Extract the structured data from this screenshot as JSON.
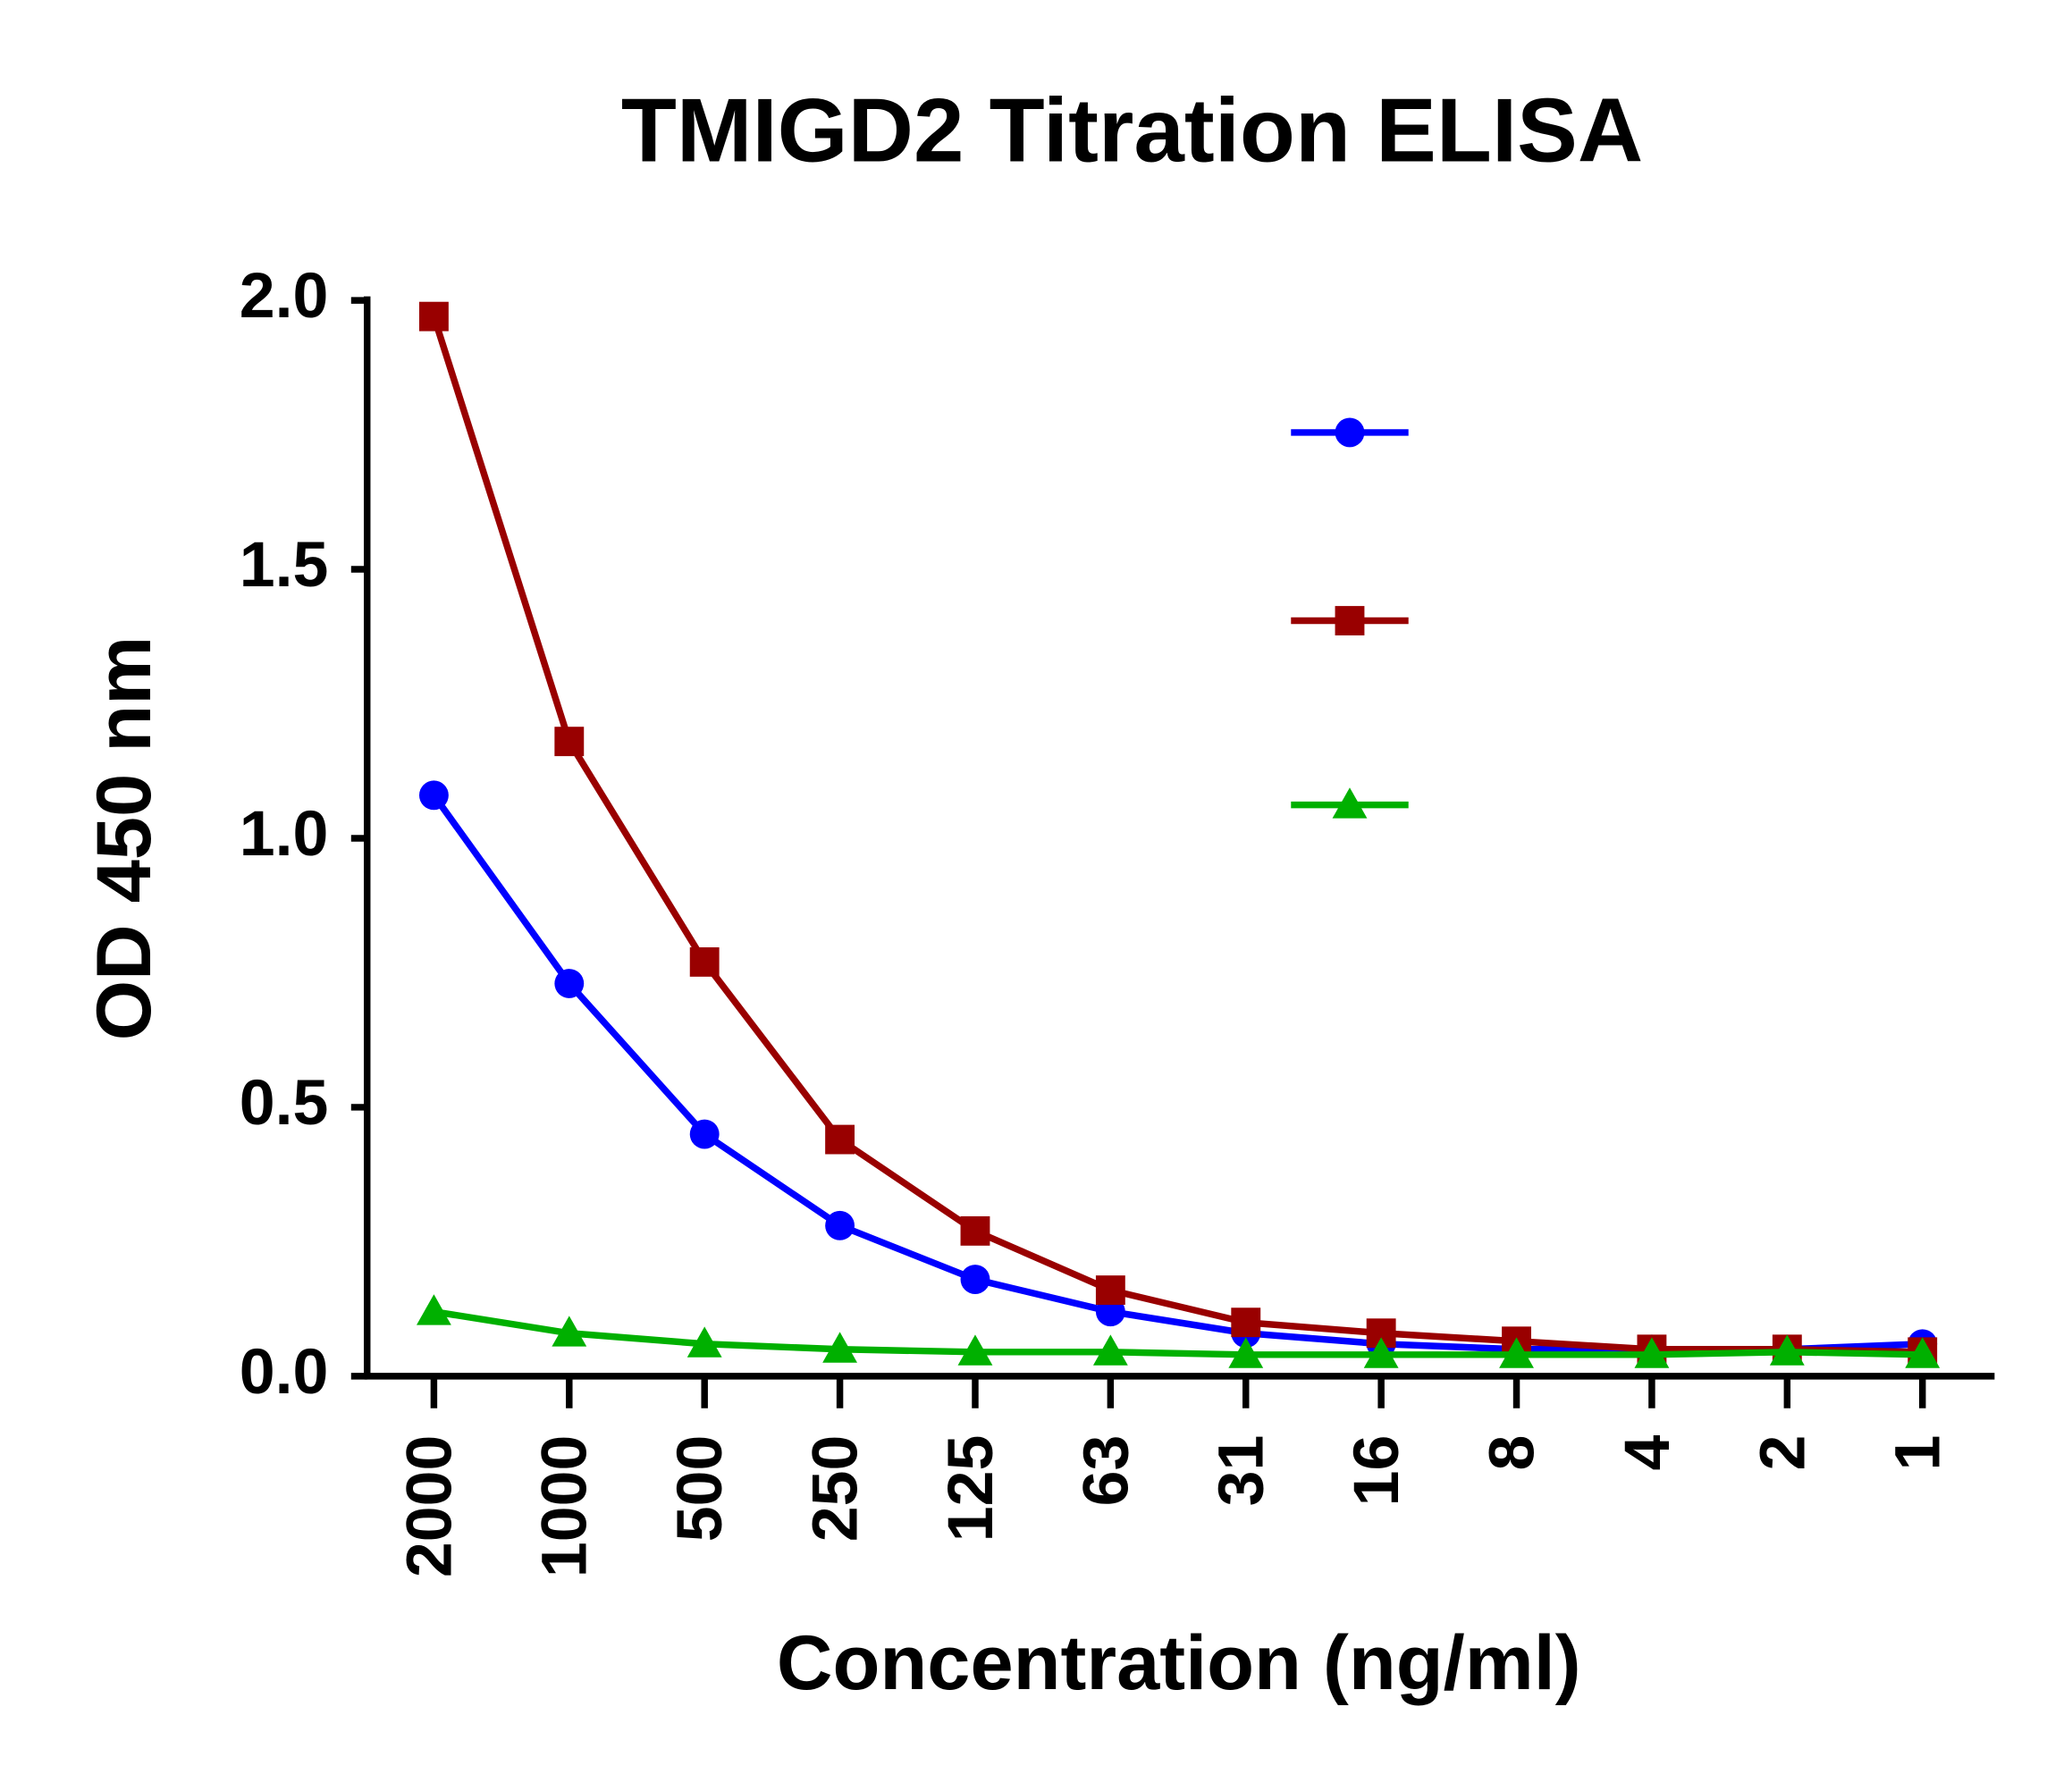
{
  "chart_data": {
    "type": "line",
    "title": "TMIGD2 Titration ELISA",
    "x_label": "Concentration (ng/ml)",
    "y_label": "OD 450 nm",
    "categories": [
      "2000",
      "1000",
      "500",
      "250",
      "125",
      "63",
      "31",
      "16",
      "8",
      "4",
      "2",
      "1"
    ],
    "series": [
      {
        "color": "#0000ff",
        "marker": "circle",
        "values": [
          1.08,
          0.73,
          0.45,
          0.28,
          0.18,
          0.12,
          0.08,
          0.06,
          0.05,
          0.05,
          0.05,
          0.06
        ]
      },
      {
        "color": "#990000",
        "marker": "square",
        "values": [
          1.97,
          1.18,
          0.77,
          0.44,
          0.27,
          0.16,
          0.1,
          0.08,
          0.065,
          0.05,
          0.05,
          0.045
        ]
      },
      {
        "color": "#00b000",
        "marker": "triangle",
        "values": [
          0.12,
          0.08,
          0.06,
          0.05,
          0.045,
          0.045,
          0.04,
          0.04,
          0.04,
          0.04,
          0.045,
          0.04
        ]
      }
    ],
    "ylim": [
      0,
      2
    ],
    "yticks": [
      {
        "value": 0,
        "label": "0.0"
      },
      {
        "value": 0.5,
        "label": "0.5"
      },
      {
        "value": 1,
        "label": "1.0"
      },
      {
        "value": 1.5,
        "label": "1.5"
      },
      {
        "value": 2,
        "label": "2.0"
      }
    ],
    "grid": false,
    "legend": "upper right"
  }
}
